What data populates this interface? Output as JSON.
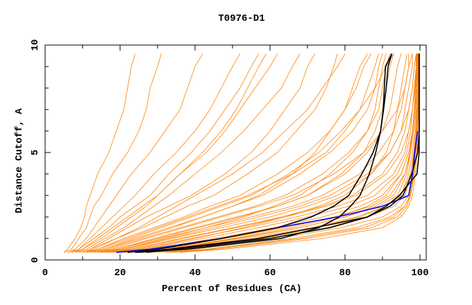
{
  "chart_data": {
    "type": "line",
    "title": "T0976-D1",
    "xlabel": "Percent of Residues (CA)",
    "ylabel": "Distance Cutoff, A",
    "xlim": [
      0,
      102
    ],
    "ylim": [
      0,
      10
    ],
    "x_ticks": [
      "0",
      "20",
      "40",
      "60",
      "80",
      "100"
    ],
    "y_ticks": [
      "0",
      "5",
      "10"
    ],
    "grid": false,
    "cutoff_levels": [
      0.35,
      0.5,
      1,
      1.5,
      2,
      2.5,
      3,
      4,
      5,
      6,
      7,
      8,
      9,
      9.6
    ],
    "colors": {
      "others": "#ff8000",
      "highlight_blue": "#0000ff",
      "highlight_black": "#000000"
    },
    "highlight_series": [
      {
        "name": "blue",
        "color": "#0000ff",
        "x": [
          19,
          28,
          47,
          62,
          78,
          90,
          97,
          98,
          98.6,
          99.4,
          99.4,
          99.4,
          99.4,
          99.4
        ],
        "end_level": 6
      },
      {
        "name": "black-1",
        "color": "#000000",
        "x": [
          22,
          30,
          47,
          62,
          71,
          77,
          81,
          84.5,
          87.5,
          89.5,
          90.2,
          90.5,
          90.8,
          92.5
        ]
      },
      {
        "name": "black-2",
        "color": "#000000",
        "x": [
          24,
          38,
          63,
          73,
          78.5,
          81.5,
          84,
          86.5,
          88.2,
          89.5,
          90.3,
          91,
          91.5,
          92.5
        ]
      },
      {
        "name": "black-3",
        "color": "#000000",
        "x": [
          25,
          33,
          57,
          72,
          86,
          92,
          95.5,
          97.8,
          99.4,
          99.8,
          99.8,
          99.8,
          99.8,
          99.8
        ]
      },
      {
        "name": "black-4",
        "color": "#000000",
        "x": [
          27,
          35,
          60,
          76,
          86,
          91,
          94.5,
          99.2,
          99.8,
          99.8,
          99.8,
          99.8,
          99.8,
          99.8
        ]
      }
    ],
    "other_series": [
      [
        5,
        6,
        8,
        9.5,
        10.5,
        11,
        12,
        14,
        17,
        19,
        21,
        22,
        23,
        24
      ],
      [
        5,
        7,
        9,
        11,
        12,
        13,
        15,
        18,
        22,
        25,
        27,
        28,
        30,
        31
      ],
      [
        6,
        8,
        11,
        13,
        15,
        17,
        19,
        23,
        28,
        32,
        36,
        38,
        40,
        42
      ],
      [
        7,
        9,
        12,
        15,
        18,
        21,
        24,
        29,
        35,
        40,
        44,
        47,
        50,
        52
      ],
      [
        8,
        10,
        14,
        18,
        22,
        26,
        30,
        36,
        43,
        48,
        52,
        56,
        60,
        62
      ],
      [
        9,
        12,
        17,
        22,
        27,
        33,
        39,
        48,
        55,
        60,
        64,
        68,
        70,
        72
      ],
      [
        10,
        13,
        19,
        26,
        32,
        38,
        45,
        54,
        62,
        67,
        72,
        75,
        77,
        78
      ],
      [
        11,
        14,
        21,
        29,
        37,
        44,
        52,
        62,
        70,
        76,
        80,
        82,
        84,
        86
      ],
      [
        12,
        16,
        24,
        33,
        42,
        50,
        58,
        68,
        76,
        82,
        86,
        88,
        89,
        90
      ],
      [
        13,
        17,
        26,
        36,
        46,
        56,
        64,
        74,
        81,
        86,
        89,
        90,
        91,
        92
      ],
      [
        14,
        19,
        29,
        40,
        51,
        62,
        70,
        80,
        86,
        90,
        92,
        93,
        94,
        95
      ],
      [
        15,
        20,
        31,
        43,
        55,
        66,
        74,
        84,
        89,
        93,
        95,
        96,
        97,
        97
      ],
      [
        16,
        22,
        34,
        47,
        60,
        70,
        78,
        87,
        92,
        95,
        96,
        97,
        98,
        98
      ],
      [
        17,
        23,
        36,
        50,
        63,
        74,
        82,
        90,
        94,
        96,
        97,
        98,
        98.5,
        99
      ],
      [
        18,
        25,
        39,
        54,
        67,
        78,
        86,
        93,
        96,
        97,
        98,
        98.5,
        99,
        99
      ],
      [
        20,
        27,
        42,
        57,
        70,
        81,
        88,
        94,
        96.5,
        97.5,
        98,
        98.5,
        99,
        99
      ],
      [
        21,
        29,
        45,
        61,
        74,
        84,
        90,
        95,
        97,
        98,
        98.5,
        99,
        99,
        99.2
      ],
      [
        22,
        31,
        48,
        64,
        77,
        87,
        92,
        96,
        97.5,
        98,
        98.5,
        99,
        99.2,
        99.3
      ],
      [
        24,
        33,
        51,
        68,
        80,
        89,
        94,
        96.5,
        97.5,
        98.2,
        98.8,
        99,
        99.3,
        99.4
      ],
      [
        26,
        35,
        54,
        71,
        83,
        91,
        95,
        97,
        98,
        98.5,
        99,
        99.2,
        99.4,
        99.5
      ],
      [
        28,
        38,
        58,
        75,
        86,
        93,
        96,
        97.5,
        98.3,
        98.8,
        99.1,
        99.3,
        99.5,
        99.6
      ],
      [
        30,
        40,
        62,
        79,
        90,
        95,
        97,
        98,
        98.6,
        99,
        99.3,
        99.5,
        99.6,
        99.7
      ],
      [
        32,
        43,
        66,
        83,
        92,
        96,
        97.5,
        98.3,
        98.8,
        99.2,
        99.4,
        99.6,
        99.7,
        99.8
      ],
      [
        34,
        46,
        70,
        87,
        94,
        96.5,
        97.5,
        98.5,
        99,
        99.3,
        99.5,
        99.6,
        99.7,
        99.8
      ],
      [
        36,
        48,
        74,
        90,
        95,
        97,
        98,
        98.8,
        99.2,
        99.4,
        99.6,
        99.7,
        99.8,
        99.8
      ],
      [
        10,
        14,
        22,
        30,
        38,
        46,
        54,
        66,
        75,
        80,
        84,
        86,
        88,
        89
      ],
      [
        12,
        16,
        25,
        34,
        42,
        50,
        57,
        66,
        72,
        76,
        80,
        83,
        85,
        87
      ],
      [
        9,
        12,
        19,
        25,
        30,
        35,
        40,
        50,
        58,
        64,
        70,
        74,
        78,
        80
      ],
      [
        8,
        11,
        16,
        21,
        25,
        29,
        33,
        40,
        47,
        53,
        58,
        63,
        66,
        68
      ],
      [
        7,
        10,
        15,
        19,
        23,
        27,
        30,
        36,
        42,
        47,
        51,
        54,
        57,
        59
      ],
      [
        11,
        15,
        23,
        31,
        39,
        47,
        55,
        65,
        73,
        79,
        84,
        88,
        91,
        93
      ],
      [
        13,
        18,
        27,
        37,
        47,
        57,
        66,
        77,
        85,
        90,
        94,
        96,
        97,
        98
      ],
      [
        15,
        21,
        33,
        45,
        57,
        68,
        76,
        86,
        92,
        95,
        97,
        98,
        98.5,
        99
      ],
      [
        18,
        24,
        37,
        51,
        64,
        75,
        83,
        91,
        95,
        97,
        98,
        98.7,
        99,
        99.2
      ],
      [
        23,
        32,
        50,
        66,
        78,
        86,
        91,
        95,
        97,
        98,
        98.6,
        99,
        99.3,
        99.5
      ],
      [
        27,
        37,
        56,
        72,
        84,
        91,
        95,
        97.5,
        98.5,
        99,
        99.3,
        99.5,
        99.6,
        99.7
      ],
      [
        6,
        9,
        13,
        17,
        20,
        24,
        28,
        33,
        39,
        44,
        48,
        52,
        55,
        57
      ],
      [
        14,
        19,
        30,
        41,
        52,
        62,
        70,
        79,
        85,
        88,
        90,
        91,
        92,
        93
      ],
      [
        16,
        21,
        32,
        43,
        53,
        61,
        68,
        76,
        82,
        86,
        88,
        89,
        90,
        91
      ],
      [
        19,
        26,
        40,
        53,
        64,
        73,
        80,
        87,
        91,
        93,
        94,
        95,
        96,
        96.5
      ],
      [
        25,
        34,
        52,
        68,
        80,
        88,
        93,
        96,
        97.3,
        98,
        98.5,
        98.8,
        99,
        99.2
      ],
      [
        33,
        44,
        68,
        85,
        93,
        96,
        97.3,
        98.2,
        98.8,
        99.1,
        99.3,
        99.5,
        99.6,
        99.7
      ]
    ]
  }
}
